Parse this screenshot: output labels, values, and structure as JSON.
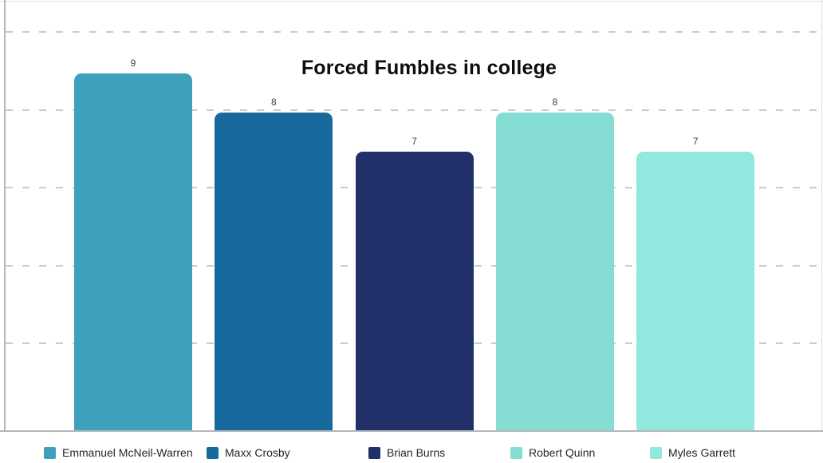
{
  "chart_data": {
    "type": "bar",
    "title": "Forced Fumbles in college",
    "categories": [
      "Emmanuel McNeil-Warren",
      "Maxx Crosby",
      "Brian Burns",
      "Robert Quinn",
      "Myles Garrett"
    ],
    "values": [
      9,
      8,
      7,
      8,
      7
    ],
    "value_labels": [
      "9",
      "8",
      "7",
      "8",
      "7"
    ],
    "bar_colors": [
      "#3EA1BB",
      "#17699E",
      "#213069",
      "#85DCD3",
      "#90E8DE"
    ],
    "xlabel": "",
    "ylabel": "",
    "ylim": [
      0,
      10.5
    ],
    "gridline_values": [
      2,
      4,
      6,
      8,
      10
    ],
    "grid": "horizontal-dashed",
    "legend_position": "bottom"
  },
  "theme": {
    "background": "#ffffff",
    "gridline_color": "#c8cbce",
    "axis_color": "#b4b8bc",
    "title_color": "#0d0d0d",
    "value_label_color": "#3d3d3d",
    "legend_text_color": "#23262e"
  }
}
